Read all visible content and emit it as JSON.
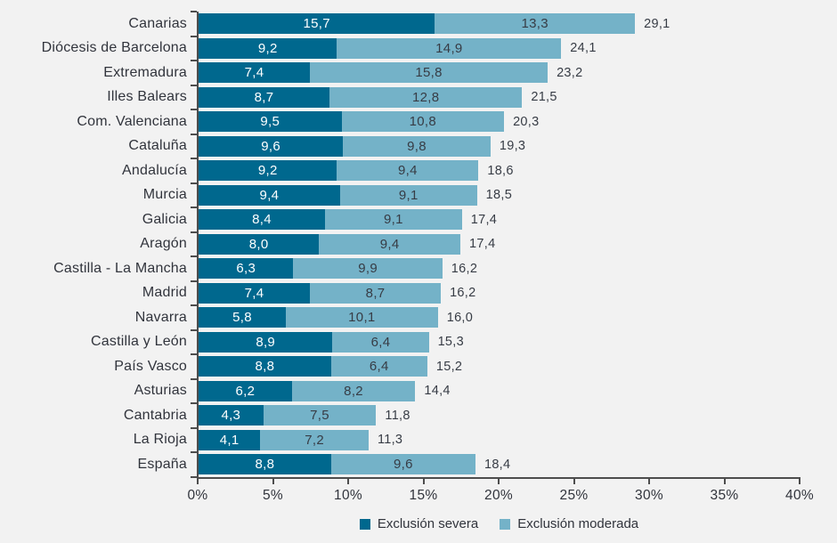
{
  "colors": {
    "background": "#f2f2f2",
    "axis": "#4d4d4d",
    "text": "#31343c",
    "value_on_dark": "#ffffff",
    "value_on_light": "#373c45"
  },
  "chart_data": {
    "type": "bar",
    "orientation": "horizontal",
    "stacked": true,
    "title": "",
    "xlabel": "",
    "ylabel": "",
    "xlim": [
      0,
      40
    ],
    "x_ticks": [
      0,
      5,
      10,
      15,
      20,
      25,
      30,
      35,
      40
    ],
    "x_tick_suffix": "%",
    "grid": false,
    "legend_position": "bottom",
    "value_decimal_separator": ",",
    "categories": [
      "Canarias",
      "Diócesis de Barcelona",
      "Extremadura",
      "Illes Balears",
      "Com. Valenciana",
      "Cataluña",
      "Andalucía",
      "Murcia",
      "Galicia",
      "Aragón",
      "Castilla - La Mancha",
      "Madrid",
      "Navarra",
      "Castilla y León",
      "País Vasco",
      "Asturias",
      "Cantabria",
      "La Rioja",
      "España"
    ],
    "series": [
      {
        "name": "Exclusión severa",
        "color": "#00688e",
        "values": [
          15.7,
          9.2,
          7.4,
          8.7,
          9.5,
          9.6,
          9.2,
          9.4,
          8.4,
          8.0,
          6.3,
          7.4,
          5.8,
          8.9,
          8.8,
          6.2,
          4.3,
          4.1,
          8.8
        ]
      },
      {
        "name": "Exclusión moderada",
        "color": "#74b2c8",
        "values": [
          13.3,
          14.9,
          15.8,
          12.8,
          10.8,
          9.8,
          9.4,
          9.1,
          9.1,
          9.4,
          9.9,
          8.7,
          10.1,
          6.4,
          6.4,
          8.2,
          7.5,
          7.2,
          9.6
        ]
      }
    ],
    "totals": [
      29.1,
      24.1,
      23.2,
      21.5,
      20.3,
      19.3,
      18.6,
      18.5,
      17.4,
      17.4,
      16.2,
      16.2,
      16.0,
      15.3,
      15.2,
      14.4,
      11.8,
      11.3,
      18.4
    ]
  }
}
